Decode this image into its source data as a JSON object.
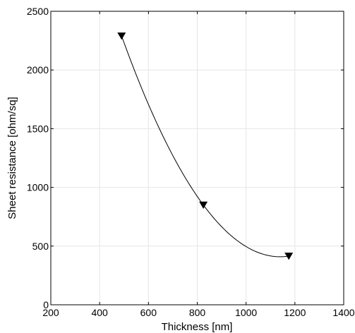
{
  "chart_data": {
    "type": "scatter",
    "title": "",
    "xlabel": "Thickness [nm]",
    "ylabel": "Sheet resistance [ohm/sq]",
    "xlim": [
      200,
      1400
    ],
    "ylim": [
      0,
      2500
    ],
    "xticks": [
      200,
      400,
      600,
      800,
      1000,
      1200,
      1400
    ],
    "yticks": [
      0,
      500,
      1000,
      1500,
      2000,
      2500
    ],
    "grid": true,
    "marker": "triangle-down",
    "series": [
      {
        "x": [
          490,
          825,
          1175
        ],
        "y": [
          2290,
          850,
          415
        ],
        "color": "#000000"
      }
    ],
    "fit_curve": {
      "style": "smooth spline through points",
      "color": "#000000"
    }
  }
}
